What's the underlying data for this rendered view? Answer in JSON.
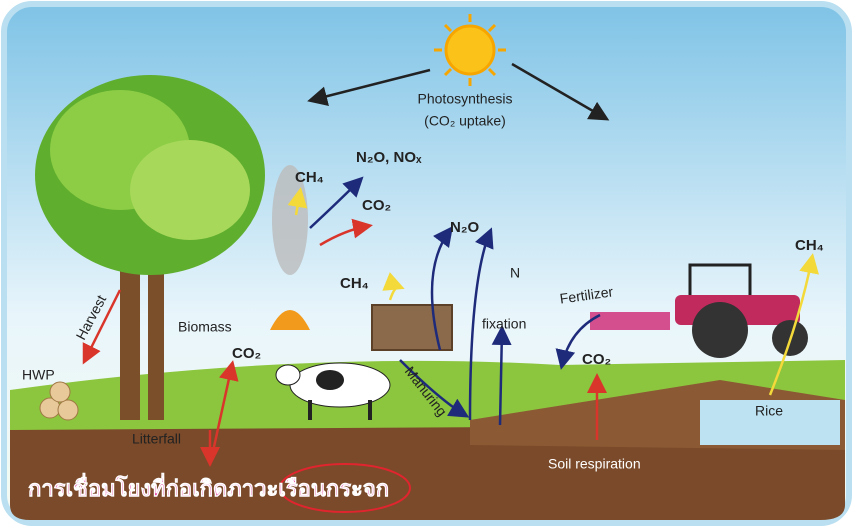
{
  "photosynthesis": {
    "title": "Photosynthesis",
    "subtitle": "(CO₂ uptake)"
  },
  "labels": {
    "fire_ch4": "CH₄",
    "fire_n2o_nox": "N₂O, NOₓ",
    "fire_co2": "CO₂",
    "manure_ch4": "CH₄",
    "n2o": "N₂O",
    "n": "N",
    "fixation": "fixation",
    "fertilizer": "Fertilizer",
    "soil_co2": "CO₂",
    "rice_ch4": "CH₄",
    "harvest": "Harvest",
    "hwp": "HWP",
    "biomass": "Biomass",
    "biomass_co2": "CO₂",
    "manuring": "Manuring",
    "litterfall": "Litterfall",
    "soil_respiration": "Soil respiration",
    "rice": "Rice"
  },
  "caption": "การเชื่อมโยงที่ก่อเกิดภาวะเรือนกระจก"
}
